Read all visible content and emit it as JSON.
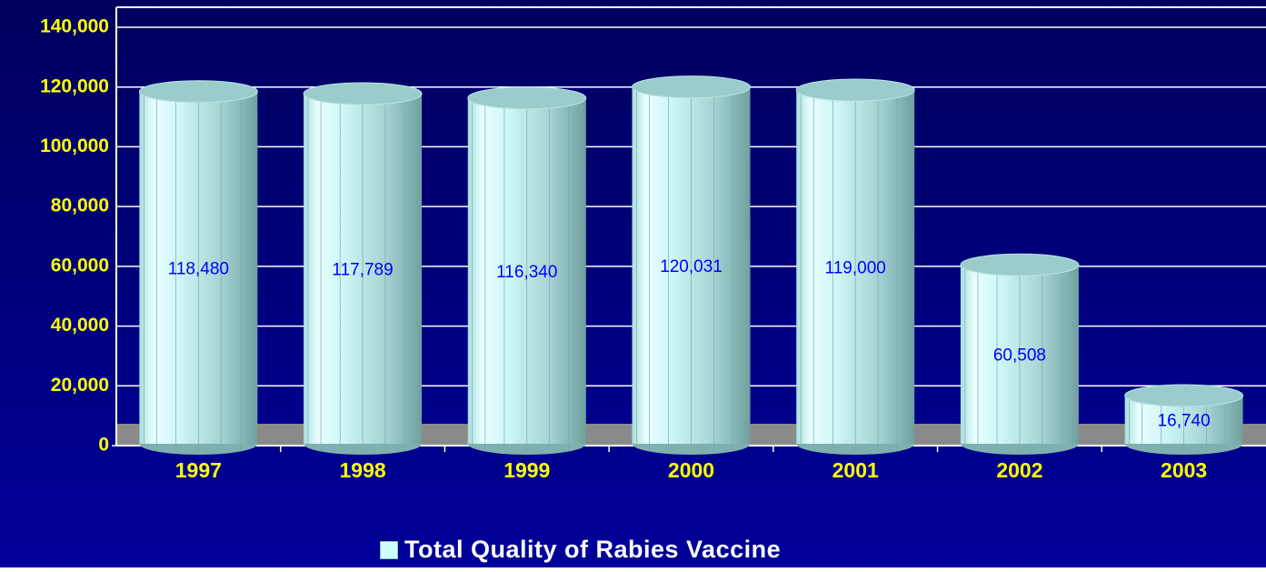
{
  "chart_data": {
    "type": "bar",
    "categories": [
      "1997",
      "1998",
      "1999",
      "2000",
      "2001",
      "2002",
      "2003"
    ],
    "series": [
      {
        "name": "Total Quality of Rabies Vaccine",
        "color": "#ccffff",
        "values": [
          118480,
          117789,
          116340,
          120031,
          119000,
          60508,
          16740
        ],
        "value_labels": [
          "118,480",
          "117,789",
          "116,340",
          "120,031",
          "119,000",
          "60,508",
          "16,740"
        ]
      }
    ],
    "ylim": [
      0,
      140000
    ],
    "yticks": [
      0,
      {
        "value": 20000,
        "label": "20,000"
      },
      {
        "value": 40000,
        "label": "40,000"
      },
      {
        "value": 60000,
        "label": "60,000"
      },
      {
        "value": 80000,
        "label": "80,000"
      },
      {
        "value": 100000,
        "label": "100,000"
      },
      {
        "value": 120000,
        "label": "120,000"
      },
      {
        "value": 140000,
        "label": "140,000"
      }
    ],
    "grid": true
  }
}
